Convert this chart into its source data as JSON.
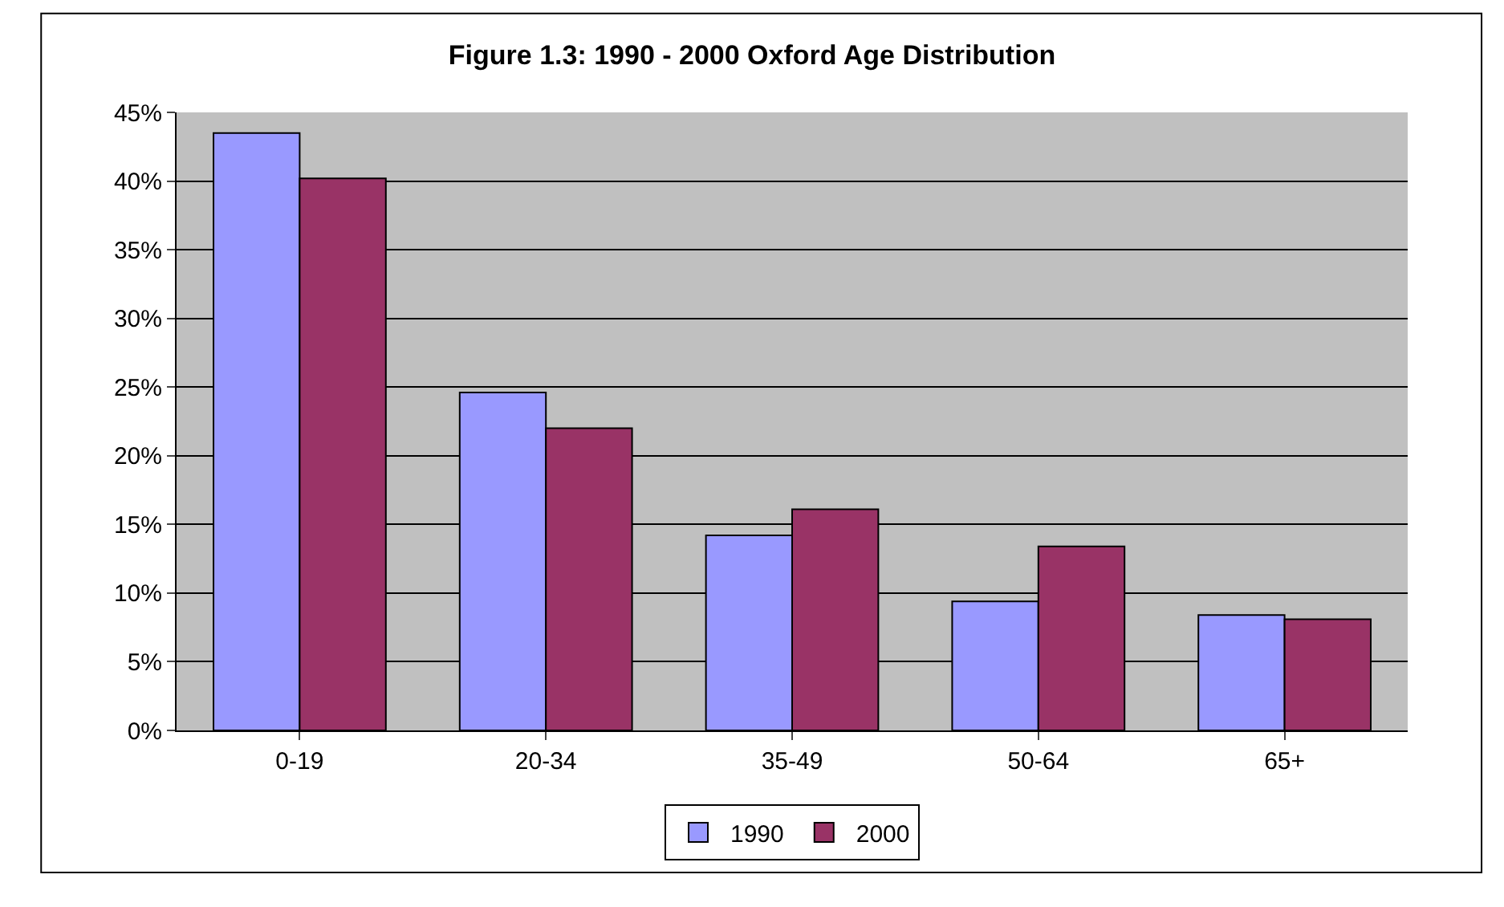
{
  "chart_data": {
    "type": "bar",
    "title": "Figure 1.3: 1990 - 2000 Oxford Age Distribution",
    "categories": [
      "0-19",
      "20-34",
      "35-49",
      "50-64",
      "65+"
    ],
    "series": [
      {
        "name": "1990",
        "color": "#9999ff",
        "values": [
          43.5,
          24.6,
          14.2,
          9.4,
          8.4
        ]
      },
      {
        "name": "2000",
        "color": "#993366",
        "values": [
          40.2,
          22.0,
          16.1,
          13.4,
          8.1
        ]
      }
    ],
    "ylim": [
      0,
      45
    ],
    "yticks": [
      {
        "value": 0,
        "label": "0%"
      },
      {
        "value": 5,
        "label": "5%"
      },
      {
        "value": 10,
        "label": "10%"
      },
      {
        "value": 15,
        "label": "15%"
      },
      {
        "value": 20,
        "label": "20%"
      },
      {
        "value": 25,
        "label": "25%"
      },
      {
        "value": 30,
        "label": "30%"
      },
      {
        "value": 35,
        "label": "35%"
      },
      {
        "value": 40,
        "label": "40%"
      },
      {
        "value": 45,
        "label": "45%"
      }
    ],
    "grid": "y",
    "legend": "bottom"
  }
}
